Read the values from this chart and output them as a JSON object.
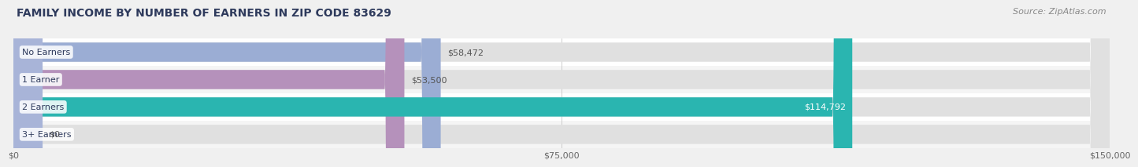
{
  "title": "FAMILY INCOME BY NUMBER OF EARNERS IN ZIP CODE 83629",
  "source": "Source: ZipAtlas.com",
  "categories": [
    "No Earners",
    "1 Earner",
    "2 Earners",
    "3+ Earners"
  ],
  "values": [
    58472,
    53500,
    114792,
    0
  ],
  "bar_colors": [
    "#9badd4",
    "#b591bb",
    "#2ab5b0",
    "#a8b4d8"
  ],
  "value_labels": [
    "$58,472",
    "$53,500",
    "$114,792",
    "$0"
  ],
  "value_label_inside": [
    false,
    false,
    true,
    false
  ],
  "xlim": [
    0,
    150000
  ],
  "xticks": [
    0,
    75000,
    150000
  ],
  "xtick_labels": [
    "$0",
    "$75,000",
    "$150,000"
  ],
  "background_color": "#f0f0f0",
  "bar_bg_color": "#e0e0e0",
  "bar_row_bg": "#f8f8f8",
  "title_color": "#2e3a5c",
  "source_color": "#888888",
  "tick_color": "#666666",
  "value_color_outside": "#555555",
  "value_color_inside": "#ffffff",
  "label_text_color": "#2e3a5c",
  "title_fontsize": 10,
  "source_fontsize": 8,
  "label_fontsize": 8,
  "value_fontsize": 8,
  "tick_fontsize": 8,
  "bar_height": 0.7,
  "small_bar_width": 4000
}
